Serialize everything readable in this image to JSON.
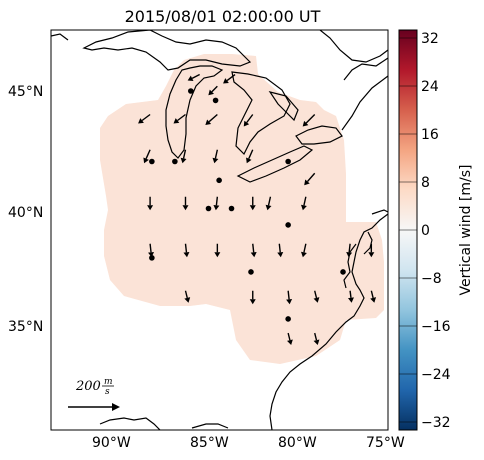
{
  "title": "2015/08/01 02:00:00 UT",
  "colorbar": {
    "label": "Vertical wind [m/s]",
    "ticks": [
      "32",
      "24",
      "16",
      "8",
      "0",
      "−8",
      "−16",
      "−24",
      "−32"
    ],
    "range": [
      -32,
      32
    ],
    "colors": [
      "#67001f",
      "#b2182b",
      "#d6604d",
      "#f4a582",
      "#fddbc7",
      "#f7f7f7",
      "#d1e5f0",
      "#92c5de",
      "#4393c3",
      "#2166ac",
      "#053061"
    ]
  },
  "axes": {
    "lat_ticks": [
      "45°N",
      "40°N",
      "35°N"
    ],
    "lon_ticks": [
      "90°W",
      "85°W",
      "80°W",
      "75°W"
    ],
    "lat_range": [
      30.5,
      47.5
    ],
    "lon_range": [
      -94,
      -75
    ]
  },
  "reference_arrow": {
    "label_value": "200",
    "label_unit_num": "m",
    "label_unit_den": "s"
  },
  "field": {
    "fill_color": "#fbe3d7",
    "vertical_wind_estimate": 4
  },
  "stations": [
    {
      "lon": -88.2,
      "lat": 42.0
    },
    {
      "lon": -86.9,
      "lat": 42.0
    },
    {
      "lon": -86.0,
      "lat": 45.0
    },
    {
      "lon": -84.6,
      "lat": 44.6
    },
    {
      "lon": -84.4,
      "lat": 41.2
    },
    {
      "lon": -80.5,
      "lat": 42.0
    },
    {
      "lon": -85.0,
      "lat": 40.0
    },
    {
      "lon": -83.7,
      "lat": 40.0
    },
    {
      "lon": -80.5,
      "lat": 39.3
    },
    {
      "lon": -88.2,
      "lat": 37.9
    },
    {
      "lon": -82.6,
      "lat": 37.3
    },
    {
      "lon": -77.4,
      "lat": 37.3
    },
    {
      "lon": -80.5,
      "lat": 35.3
    }
  ],
  "arrows": [
    {
      "lon": -88.3,
      "lat": 44.0,
      "u": -40,
      "v": -30
    },
    {
      "lon": -86.3,
      "lat": 44.0,
      "u": -40,
      "v": -30
    },
    {
      "lon": -84.5,
      "lat": 44.0,
      "u": -40,
      "v": -35
    },
    {
      "lon": -82.5,
      "lat": 44.0,
      "u": -30,
      "v": -40
    },
    {
      "lon": -79.0,
      "lat": 44.0,
      "u": -40,
      "v": -40
    },
    {
      "lon": -85.5,
      "lat": 45.7,
      "u": -40,
      "v": -20
    },
    {
      "lon": -83.5,
      "lat": 45.7,
      "u": -40,
      "v": -30
    },
    {
      "lon": -84.5,
      "lat": 45.2,
      "u": -30,
      "v": -30
    },
    {
      "lon": -88.3,
      "lat": 42.5,
      "u": -20,
      "v": -45
    },
    {
      "lon": -86.3,
      "lat": 42.5,
      "u": -10,
      "v": -45
    },
    {
      "lon": -84.5,
      "lat": 42.5,
      "u": -10,
      "v": -45
    },
    {
      "lon": -82.5,
      "lat": 42.5,
      "u": -20,
      "v": -45
    },
    {
      "lon": -79.0,
      "lat": 41.5,
      "u": -35,
      "v": -40
    },
    {
      "lon": -88.3,
      "lat": 40.5,
      "u": 0,
      "v": -45
    },
    {
      "lon": -86.3,
      "lat": 40.5,
      "u": 0,
      "v": -45
    },
    {
      "lon": -84.5,
      "lat": 40.5,
      "u": -5,
      "v": -45
    },
    {
      "lon": -82.5,
      "lat": 40.5,
      "u": 0,
      "v": -45
    },
    {
      "lon": -81.5,
      "lat": 40.5,
      "u": -10,
      "v": -45
    },
    {
      "lon": -79.5,
      "lat": 40.5,
      "u": -10,
      "v": -45
    },
    {
      "lon": -88.3,
      "lat": 38.5,
      "u": 5,
      "v": -45
    },
    {
      "lon": -86.3,
      "lat": 38.5,
      "u": 5,
      "v": -45
    },
    {
      "lon": -84.5,
      "lat": 38.5,
      "u": 0,
      "v": -45
    },
    {
      "lon": -82.5,
      "lat": 38.5,
      "u": 5,
      "v": -45
    },
    {
      "lon": -81.0,
      "lat": 38.5,
      "u": 5,
      "v": -45
    },
    {
      "lon": -79.5,
      "lat": 38.5,
      "u": -10,
      "v": -45
    },
    {
      "lon": -77.0,
      "lat": 38.5,
      "u": -5,
      "v": -45
    },
    {
      "lon": -75.8,
      "lat": 38.5,
      "u": 0,
      "v": -45
    },
    {
      "lon": -86.3,
      "lat": 36.5,
      "u": 10,
      "v": -40
    },
    {
      "lon": -82.5,
      "lat": 36.5,
      "u": 0,
      "v": -45
    },
    {
      "lon": -80.5,
      "lat": 36.5,
      "u": 5,
      "v": -45
    },
    {
      "lon": -79.0,
      "lat": 36.5,
      "u": 10,
      "v": -40
    },
    {
      "lon": -77.0,
      "lat": 36.5,
      "u": 5,
      "v": -40
    },
    {
      "lon": -75.8,
      "lat": 36.5,
      "u": 10,
      "v": -40
    },
    {
      "lon": -80.5,
      "lat": 34.7,
      "u": 10,
      "v": -40
    },
    {
      "lon": -79.0,
      "lat": 34.7,
      "u": 10,
      "v": -40
    }
  ]
}
